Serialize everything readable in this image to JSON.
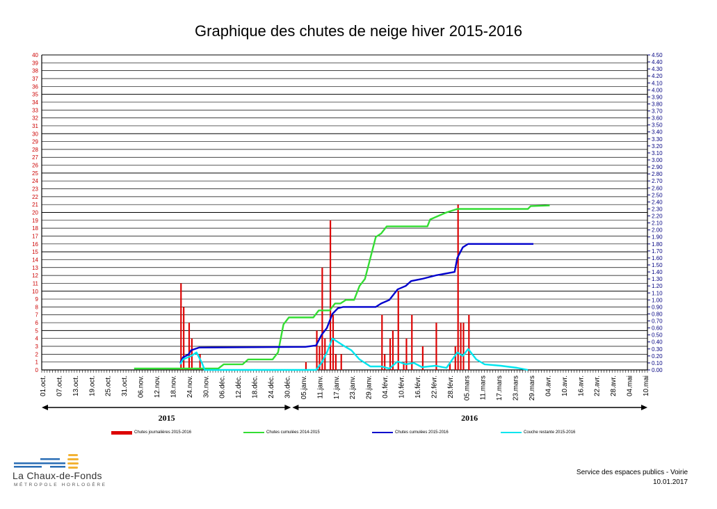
{
  "page": {
    "title": "Graphique des chutes de neige hiver 2015-2016",
    "footer_service": "Service des espaces publics - Voirie",
    "footer_date": "10.01.2017",
    "logo_name": "La Chaux-de-Fonds",
    "logo_sub": "MÉTROPOLE HORLOGÈRE"
  },
  "chart_data": {
    "type": "bar+line",
    "title": "Graphique des chutes de neige hiver 2015-2016",
    "x_start": "2015-10-01",
    "x_tick_labels": [
      "01.oct.",
      "07.oct.",
      "13.oct.",
      "19.oct.",
      "25.oct.",
      "31.oct.",
      "06.nov.",
      "12.nov.",
      "18.nov.",
      "24.nov.",
      "30.nov.",
      "06.déc.",
      "12.déc.",
      "18.déc.",
      "24.déc.",
      "30.déc.",
      "05.janv.",
      "11.janv.",
      "17.janv.",
      "23.janv.",
      "29.janv.",
      "04.févr.",
      "10.févr.",
      "16.févr.",
      "22.févr.",
      "28.févr.",
      "05.mars",
      "11.mars",
      "17.mars",
      "23.mars",
      "29.mars",
      "04.avr.",
      "10.avr.",
      "16.avr.",
      "22.avr.",
      "28.avr.",
      "04.mai",
      "10.mai"
    ],
    "x_tick_step_days": 6,
    "year_labels": [
      "2015",
      "2016"
    ],
    "y_left": {
      "min": 0,
      "max": 40,
      "step": 1,
      "color": "#cc0000"
    },
    "y_right": {
      "min": 0,
      "max": 4.5,
      "step": 0.1,
      "color": "#000080",
      "decimals": 2
    },
    "grid": "horizontal every 1 unit, thick every 5",
    "legend": [
      "Chutes journalières 2015-2016",
      "Chutes cumulées 2014-2015",
      "Chutes cumulées 2015-2016",
      "Couche restante 2015-2016"
    ],
    "daily_snowfall": {
      "name": "Chutes journalières 2015-2016",
      "color": "#dd0000",
      "axis": "left",
      "points": [
        [
          "2015-11-21",
          11
        ],
        [
          "2015-11-22",
          8
        ],
        [
          "2015-11-24",
          6
        ],
        [
          "2015-11-25",
          4
        ],
        [
          "2015-11-28",
          2
        ],
        [
          "2016-01-06",
          1
        ],
        [
          "2016-01-10",
          5
        ],
        [
          "2016-01-11",
          3
        ],
        [
          "2016-01-12",
          13
        ],
        [
          "2016-01-13",
          4
        ],
        [
          "2016-01-15",
          19
        ],
        [
          "2016-01-16",
          7
        ],
        [
          "2016-01-17",
          2
        ],
        [
          "2016-01-19",
          2
        ],
        [
          "2016-02-03",
          7
        ],
        [
          "2016-02-04",
          2
        ],
        [
          "2016-02-06",
          4
        ],
        [
          "2016-02-07",
          5
        ],
        [
          "2016-02-09",
          10
        ],
        [
          "2016-02-11",
          1
        ],
        [
          "2016-02-12",
          4
        ],
        [
          "2016-02-14",
          7
        ],
        [
          "2016-02-18",
          3
        ],
        [
          "2016-02-23",
          6
        ],
        [
          "2016-02-28",
          1
        ],
        [
          "2016-03-01",
          3
        ],
        [
          "2016-03-02",
          21
        ],
        [
          "2016-03-03",
          6
        ],
        [
          "2016-03-04",
          6
        ],
        [
          "2016-03-06",
          7
        ]
      ]
    },
    "cumul_2014_2015": {
      "name": "Chutes cumulées 2014-2015",
      "color": "#33dd33",
      "axis": "right",
      "points": [
        [
          "2015-11-04",
          0.02
        ],
        [
          "2015-11-30",
          0.02
        ],
        [
          "2015-12-05",
          0.02
        ],
        [
          "2015-12-07",
          0.08
        ],
        [
          "2015-12-14",
          0.08
        ],
        [
          "2015-12-16",
          0.15
        ],
        [
          "2015-12-25",
          0.15
        ],
        [
          "2015-12-27",
          0.25
        ],
        [
          "2015-12-29",
          0.65
        ],
        [
          "2015-12-31",
          0.75
        ],
        [
          "2016-01-09",
          0.75
        ],
        [
          "2016-01-11",
          0.85
        ],
        [
          "2016-01-15",
          0.85
        ],
        [
          "2016-01-17",
          0.95
        ],
        [
          "2016-01-19",
          0.95
        ],
        [
          "2016-01-21",
          1.0
        ],
        [
          "2016-01-24",
          1.0
        ],
        [
          "2016-01-26",
          1.2
        ],
        [
          "2016-01-28",
          1.3
        ],
        [
          "2016-01-30",
          1.6
        ],
        [
          "2016-02-01",
          1.9
        ],
        [
          "2016-02-03",
          1.95
        ],
        [
          "2016-02-05",
          2.05
        ],
        [
          "2016-02-20",
          2.05
        ],
        [
          "2016-02-21",
          2.15
        ],
        [
          "2016-02-24",
          2.2
        ],
        [
          "2016-02-27",
          2.25
        ],
        [
          "2016-03-02",
          2.3
        ],
        [
          "2016-03-28",
          2.3
        ],
        [
          "2016-03-29",
          2.34
        ],
        [
          "2016-04-05",
          2.35
        ]
      ]
    },
    "cumul_2015_2016": {
      "name": "Chutes cumulées 2015-2016",
      "color": "#0000cc",
      "axis": "right",
      "points": [
        [
          "2015-11-21",
          0.1
        ],
        [
          "2015-11-22",
          0.18
        ],
        [
          "2015-11-24",
          0.22
        ],
        [
          "2015-11-25",
          0.28
        ],
        [
          "2015-11-28",
          0.32
        ],
        [
          "2016-01-06",
          0.33
        ],
        [
          "2016-01-10",
          0.35
        ],
        [
          "2016-01-12",
          0.5
        ],
        [
          "2016-01-14",
          0.6
        ],
        [
          "2016-01-16",
          0.8
        ],
        [
          "2016-01-18",
          0.88
        ],
        [
          "2016-01-20",
          0.9
        ],
        [
          "2016-02-01",
          0.9
        ],
        [
          "2016-02-03",
          0.95
        ],
        [
          "2016-02-06",
          1.0
        ],
        [
          "2016-02-09",
          1.15
        ],
        [
          "2016-02-12",
          1.2
        ],
        [
          "2016-02-14",
          1.27
        ],
        [
          "2016-02-18",
          1.3
        ],
        [
          "2016-02-23",
          1.35
        ],
        [
          "2016-03-01",
          1.4
        ],
        [
          "2016-03-02",
          1.6
        ],
        [
          "2016-03-04",
          1.75
        ],
        [
          "2016-03-06",
          1.8
        ],
        [
          "2016-03-30",
          1.8
        ]
      ]
    },
    "remaining_layer": {
      "name": "Couche restante 2015-2016",
      "color": "#00e5ee",
      "axis": "right",
      "points": [
        [
          "2015-11-21",
          0.08
        ],
        [
          "2015-11-22",
          0.15
        ],
        [
          "2015-11-25",
          0.2
        ],
        [
          "2015-11-27",
          0.25
        ],
        [
          "2015-11-29",
          0.1
        ],
        [
          "2015-11-30",
          0.0
        ],
        [
          "2016-01-10",
          0.0
        ],
        [
          "2016-01-12",
          0.1
        ],
        [
          "2016-01-14",
          0.25
        ],
        [
          "2016-01-16",
          0.45
        ],
        [
          "2016-01-18",
          0.4
        ],
        [
          "2016-01-20",
          0.35
        ],
        [
          "2016-01-23",
          0.28
        ],
        [
          "2016-01-26",
          0.15
        ],
        [
          "2016-01-30",
          0.05
        ],
        [
          "2016-02-03",
          0.05
        ],
        [
          "2016-02-06",
          0.02
        ],
        [
          "2016-02-09",
          0.12
        ],
        [
          "2016-02-12",
          0.08
        ],
        [
          "2016-02-15",
          0.1
        ],
        [
          "2016-02-18",
          0.04
        ],
        [
          "2016-02-23",
          0.06
        ],
        [
          "2016-02-27",
          0.03
        ],
        [
          "2016-03-02",
          0.25
        ],
        [
          "2016-03-04",
          0.2
        ],
        [
          "2016-03-06",
          0.3
        ],
        [
          "2016-03-09",
          0.15
        ],
        [
          "2016-03-12",
          0.08
        ],
        [
          "2016-03-18",
          0.06
        ],
        [
          "2016-03-24",
          0.03
        ],
        [
          "2016-03-28",
          0.0
        ]
      ]
    }
  }
}
